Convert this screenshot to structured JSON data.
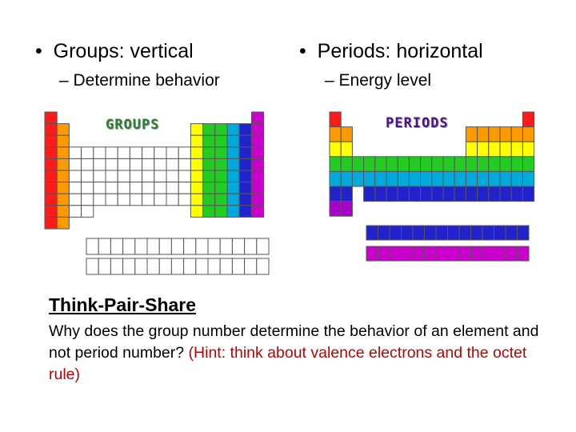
{
  "left": {
    "bullet": "Groups: vertical",
    "sub": "Determine behavior",
    "image_label": "GROUPS"
  },
  "right": {
    "bullet": "Periods: horizontal",
    "sub": "Energy level",
    "image_label": "PERIODS"
  },
  "think": {
    "title": "Think-Pair-Share",
    "question": "Why does the group number determine the behavior of an element and not period number?",
    "hint": "(Hint: think about valence electrons and the octet rule)"
  },
  "colors": {
    "red": "#ff1a1a",
    "orange": "#ff9900",
    "yellow": "#ffff00",
    "green": "#22cc22",
    "cyan": "#00aadd",
    "blue": "#2222cc",
    "magenta": "#cc00cc",
    "purple": "#aa00cc",
    "white": "#ffffff"
  }
}
